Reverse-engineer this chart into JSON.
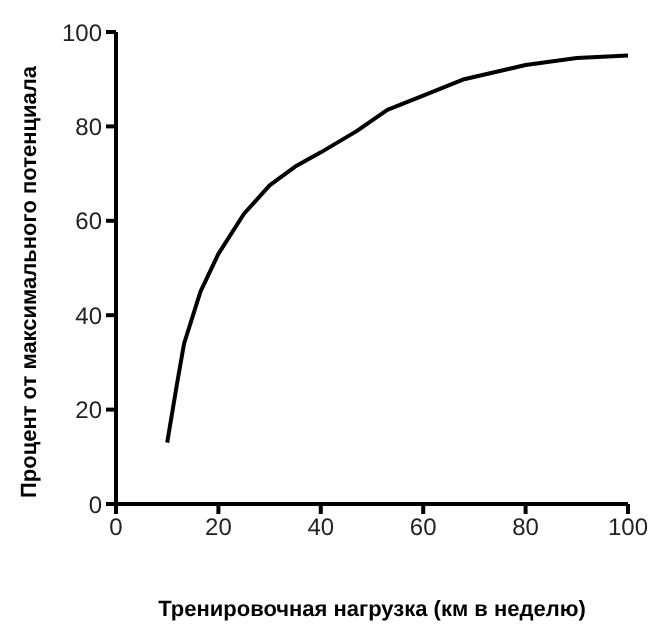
{
  "chart_data": {
    "type": "line",
    "xlabel": "Тренировочная нагрузка (км в неделю)",
    "ylabel": "Процент от максимального потенциала",
    "x": [
      10,
      12,
      13.3,
      16.5,
      20,
      25,
      30,
      35,
      40,
      47,
      53,
      60,
      68,
      80,
      90,
      100
    ],
    "series": [
      {
        "color": "#000000",
        "values": [
          13,
          26,
          34,
          45,
          53,
          61.5,
          67.5,
          71.5,
          74.5,
          79,
          83.5,
          86.5,
          90,
          93,
          94.5,
          95
        ]
      }
    ],
    "xlim": [
      0,
      100
    ],
    "ylim": [
      0,
      100
    ],
    "xticks": [
      0,
      20,
      40,
      60,
      80,
      100
    ],
    "yticks": [
      0,
      20,
      40,
      60,
      80,
      100
    ],
    "grid": false,
    "legend": false,
    "marker": "none",
    "line_style": "solid"
  }
}
